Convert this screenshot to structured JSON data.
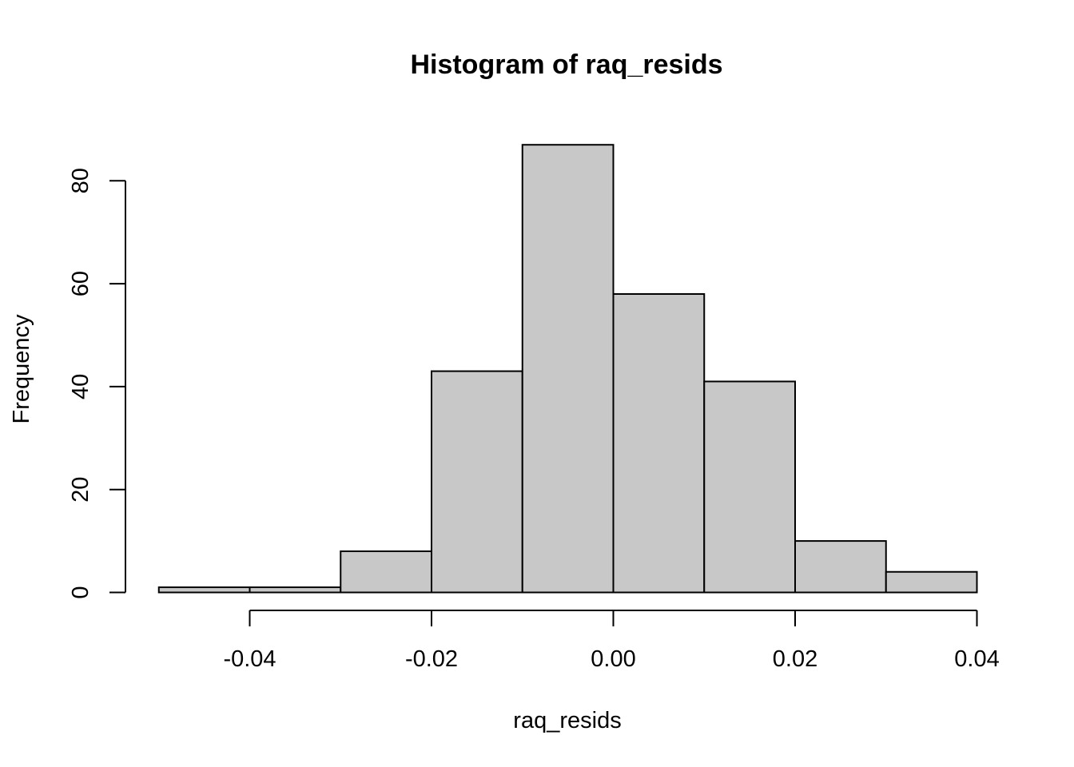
{
  "chart_data": {
    "type": "bar",
    "title": "Histogram of raq_resids",
    "xlabel": "raq_resids",
    "ylabel": "Frequency",
    "bins": [
      {
        "start": -0.05,
        "end": -0.04,
        "count": 1
      },
      {
        "start": -0.04,
        "end": -0.03,
        "count": 1
      },
      {
        "start": -0.03,
        "end": -0.02,
        "count": 8
      },
      {
        "start": -0.02,
        "end": -0.01,
        "count": 43
      },
      {
        "start": -0.01,
        "end": 0.0,
        "count": 87
      },
      {
        "start": 0.0,
        "end": 0.01,
        "count": 58
      },
      {
        "start": 0.01,
        "end": 0.02,
        "count": 41
      },
      {
        "start": 0.02,
        "end": 0.03,
        "count": 10
      },
      {
        "start": 0.03,
        "end": 0.04,
        "count": 4
      }
    ],
    "x_ticks": [
      -0.04,
      -0.02,
      0.0,
      0.02,
      0.04
    ],
    "x_tick_labels": [
      "-0.04",
      "-0.02",
      "0.00",
      "0.02",
      "0.04"
    ],
    "y_ticks": [
      0,
      20,
      40,
      60,
      80
    ],
    "y_tick_labels": [
      "0",
      "20",
      "40",
      "60",
      "80"
    ],
    "xlim": [
      -0.05,
      0.04
    ],
    "ylim": [
      0,
      80
    ],
    "bar_fill": "#c8c8c8",
    "bar_stroke": "#000000",
    "grid": false,
    "legend": "none"
  }
}
